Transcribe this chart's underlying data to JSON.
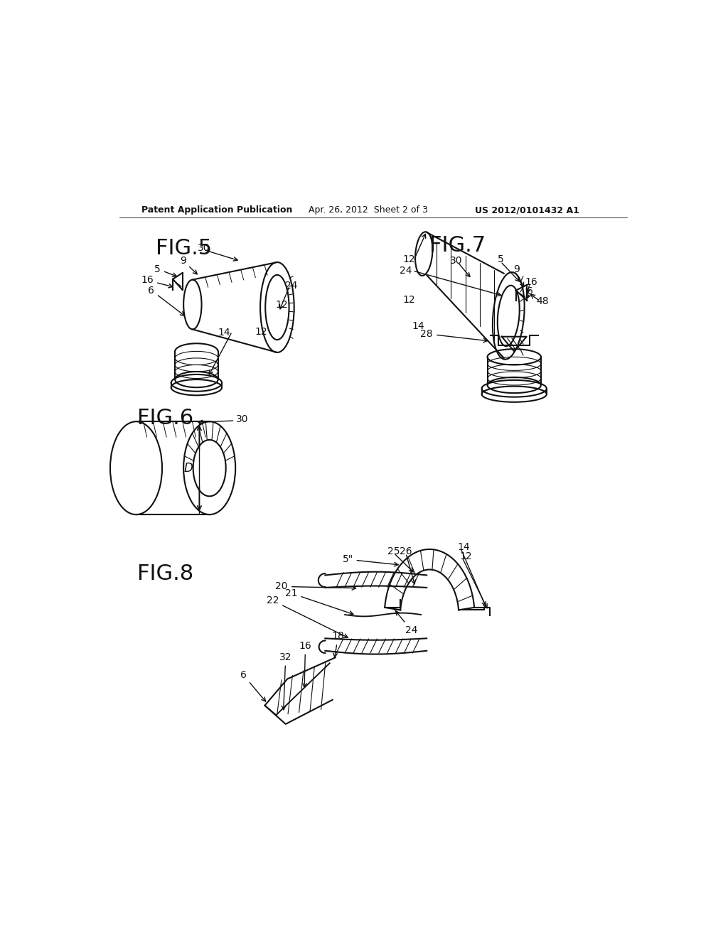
{
  "background_color": "#ffffff",
  "header_text": "Patent Application Publication",
  "header_date": "Apr. 26, 2012  Sheet 2 of 3",
  "header_patent": "US 2012/0101432 A1",
  "line_color": "#111111",
  "line_width": 1.5,
  "label_fontsize": 10,
  "fig_label_fontsize": 22
}
